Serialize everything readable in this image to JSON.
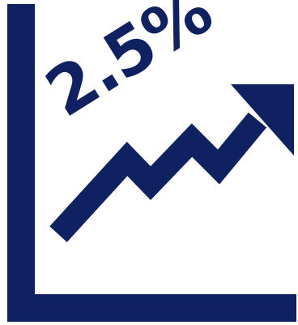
{
  "graphic": {
    "icon": "growth-chart-icon",
    "color": "#0f2160",
    "background": "#ffffff"
  },
  "label": {
    "value": "2.5%"
  }
}
